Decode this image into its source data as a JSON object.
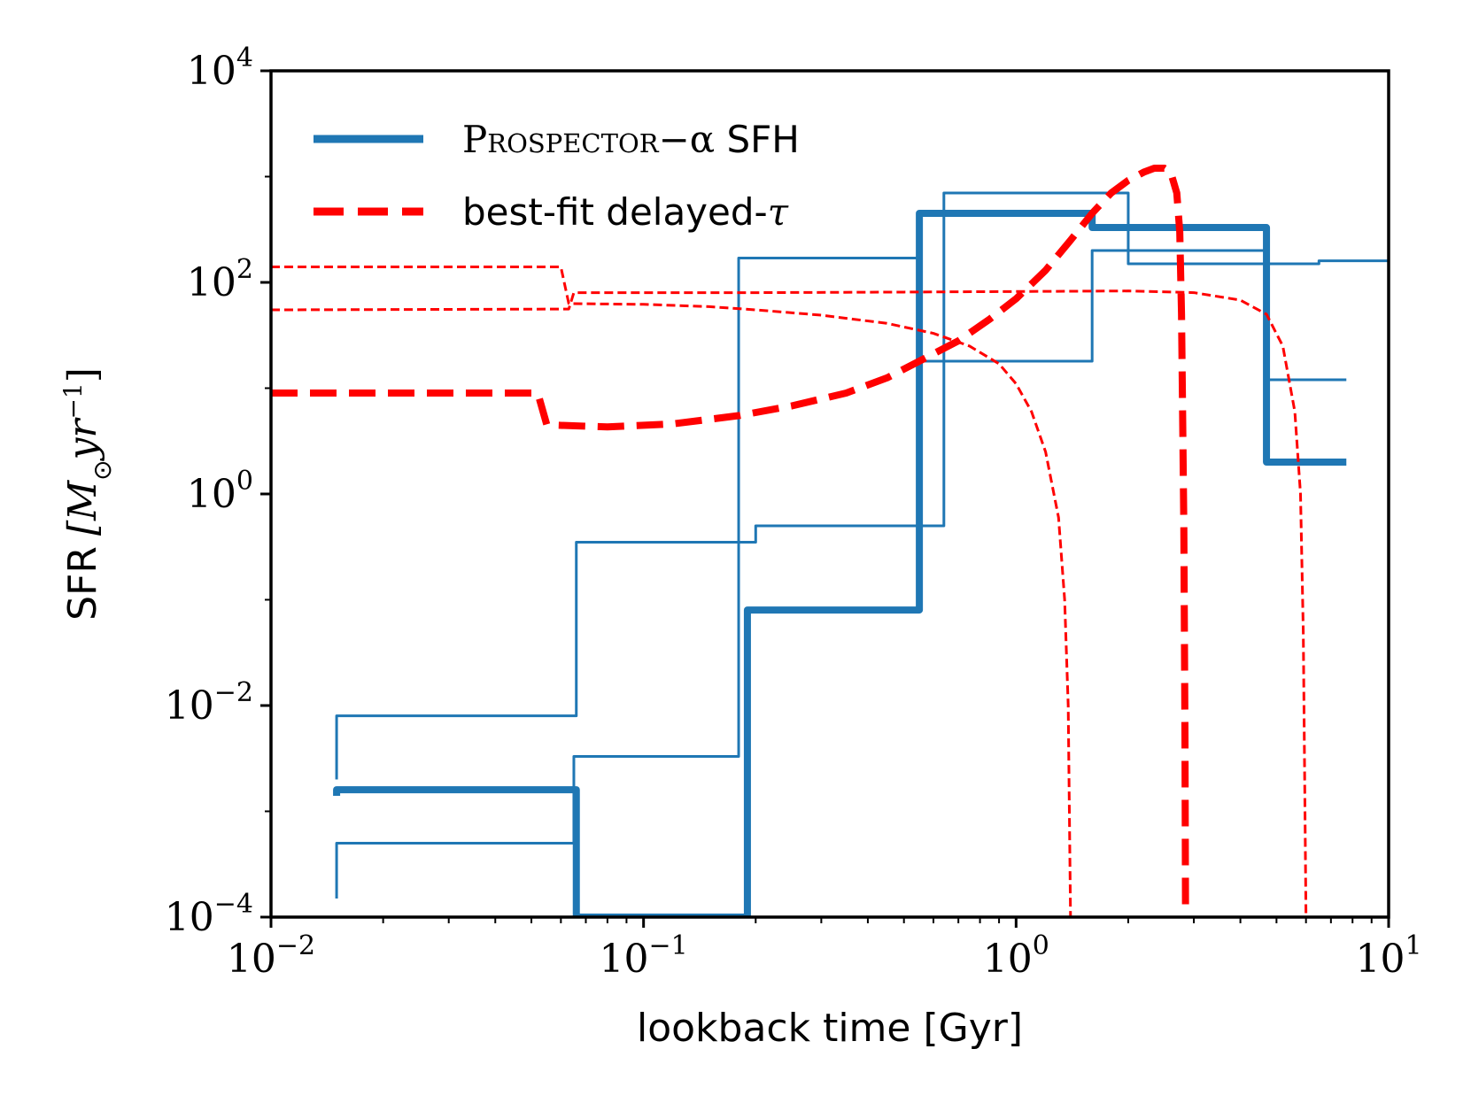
{
  "chart_data": {
    "type": "line",
    "title": "",
    "xlabel": "lookback time [Gyr]",
    "ylabel_main": "SFR",
    "ylabel_unit": "[M",
    "ylabel_sub": "⊙",
    "ylabel_unit_rest": "yr",
    "ylabel_exp": "−1",
    "ylabel_close": "]",
    "xscale": "log",
    "yscale": "log",
    "xlim": [
      0.01,
      10
    ],
    "ylim": [
      0.0001,
      10000
    ],
    "xticks": [
      {
        "value": 0.01,
        "base": "10",
        "exp": "−2"
      },
      {
        "value": 0.1,
        "base": "10",
        "exp": "−1"
      },
      {
        "value": 1,
        "base": "10",
        "exp": "0"
      },
      {
        "value": 10,
        "base": "10",
        "exp": "1"
      }
    ],
    "yticks": [
      {
        "value": 0.0001,
        "base": "10",
        "exp": "−4"
      },
      {
        "value": 0.01,
        "base": "10",
        "exp": "−2"
      },
      {
        "value": 1,
        "base": "10",
        "exp": "0"
      },
      {
        "value": 100,
        "base": "10",
        "exp": "2"
      },
      {
        "value": 10000,
        "base": "10",
        "exp": "4"
      }
    ],
    "legend": {
      "position": "upper-left",
      "entries": [
        {
          "label_smallcaps": "Prospector",
          "label_math": "−α",
          "label_rest": " SFH",
          "color": "#1f77b4",
          "style": "solid"
        },
        {
          "label_text": "best-fit delayed-",
          "label_math": "τ",
          "color": "#ff0000",
          "style": "dashed"
        }
      ]
    },
    "series": [
      {
        "name": "prospector-median",
        "color": "#1f77b4",
        "style": "solid",
        "weight": "thick",
        "points": [
          [
            0.015,
            0.0014
          ],
          [
            0.015,
            0.0016
          ],
          [
            0.066,
            0.0016
          ],
          [
            0.066,
            0.0001
          ],
          [
            0.19,
            0.0001
          ],
          [
            0.19,
            0.08
          ],
          [
            0.55,
            0.08
          ],
          [
            0.55,
            450
          ],
          [
            1.6,
            450
          ],
          [
            1.6,
            330
          ],
          [
            4.7,
            330
          ],
          [
            4.7,
            2
          ],
          [
            7.7,
            2
          ]
        ]
      },
      {
        "name": "prospector-upper",
        "color": "#1f77b4",
        "style": "solid",
        "weight": "thin",
        "points": [
          [
            0.015,
            0.002
          ],
          [
            0.015,
            0.008
          ],
          [
            0.066,
            0.008
          ],
          [
            0.066,
            0.35
          ],
          [
            0.19,
            0.35
          ],
          [
            0.2,
            0.35
          ],
          [
            0.2,
            0.5
          ],
          [
            0.64,
            0.5
          ],
          [
            0.64,
            700
          ],
          [
            2.0,
            700
          ],
          [
            2.0,
            150
          ],
          [
            6.5,
            150
          ],
          [
            6.5,
            160
          ],
          [
            10,
            160
          ]
        ]
      },
      {
        "name": "prospector-lower",
        "color": "#1f77b4",
        "style": "solid",
        "weight": "thin",
        "points": [
          [
            0.015,
            0.00015
          ],
          [
            0.015,
            0.0005
          ],
          [
            0.065,
            0.0005
          ],
          [
            0.065,
            0.0033
          ],
          [
            0.18,
            0.0033
          ],
          [
            0.18,
            170
          ],
          [
            0.55,
            170
          ],
          [
            0.55,
            18
          ],
          [
            1.6,
            18
          ],
          [
            1.6,
            200
          ],
          [
            4.7,
            200
          ],
          [
            4.7,
            12
          ],
          [
            7.7,
            12
          ]
        ]
      },
      {
        "name": "delayed-tau-best",
        "color": "#ff0000",
        "style": "dashed",
        "weight": "thick",
        "points": [
          [
            0.01,
            9
          ],
          [
            0.052,
            9
          ],
          [
            0.055,
            4.5
          ],
          [
            0.08,
            4.3
          ],
          [
            0.12,
            4.6
          ],
          [
            0.18,
            5.5
          ],
          [
            0.25,
            6.8
          ],
          [
            0.35,
            9
          ],
          [
            0.45,
            12.5
          ],
          [
            0.55,
            18
          ],
          [
            0.7,
            28
          ],
          [
            0.85,
            45
          ],
          [
            1.0,
            70
          ],
          [
            1.2,
            130
          ],
          [
            1.4,
            250
          ],
          [
            1.6,
            450
          ],
          [
            1.8,
            700
          ],
          [
            2.0,
            920
          ],
          [
            2.2,
            1100
          ],
          [
            2.35,
            1200
          ],
          [
            2.5,
            1200
          ],
          [
            2.6,
            1100
          ],
          [
            2.7,
            700
          ],
          [
            2.75,
            300
          ],
          [
            2.78,
            50
          ],
          [
            2.8,
            5
          ],
          [
            2.82,
            0.5
          ],
          [
            2.83,
            0.05
          ],
          [
            2.84,
            0.005
          ],
          [
            2.85,
            0.0001
          ]
        ]
      },
      {
        "name": "delayed-tau-upper",
        "color": "#ff0000",
        "style": "dashed",
        "weight": "thin",
        "points": [
          [
            0.01,
            140
          ],
          [
            0.06,
            140
          ],
          [
            0.063,
            63
          ],
          [
            0.1,
            62
          ],
          [
            0.15,
            59
          ],
          [
            0.2,
            55
          ],
          [
            0.3,
            49
          ],
          [
            0.45,
            41
          ],
          [
            0.6,
            33
          ],
          [
            0.75,
            25
          ],
          [
            0.9,
            17
          ],
          [
            1.0,
            11
          ],
          [
            1.1,
            6
          ],
          [
            1.2,
            2.5
          ],
          [
            1.3,
            0.6
          ],
          [
            1.35,
            0.1
          ],
          [
            1.38,
            0.01
          ],
          [
            1.4,
            0.0001
          ]
        ]
      },
      {
        "name": "delayed-tau-lower",
        "color": "#ff0000",
        "style": "dashed",
        "weight": "thin",
        "points": [
          [
            0.01,
            55
          ],
          [
            0.063,
            56
          ],
          [
            0.065,
            80
          ],
          [
            0.2,
            80
          ],
          [
            0.5,
            81
          ],
          [
            1.0,
            82
          ],
          [
            2.0,
            83
          ],
          [
            3.0,
            80
          ],
          [
            4.0,
            68
          ],
          [
            4.7,
            50
          ],
          [
            5.2,
            25
          ],
          [
            5.6,
            6
          ],
          [
            5.8,
            1
          ],
          [
            5.9,
            0.05
          ],
          [
            6.0,
            0.0001
          ]
        ]
      }
    ]
  }
}
